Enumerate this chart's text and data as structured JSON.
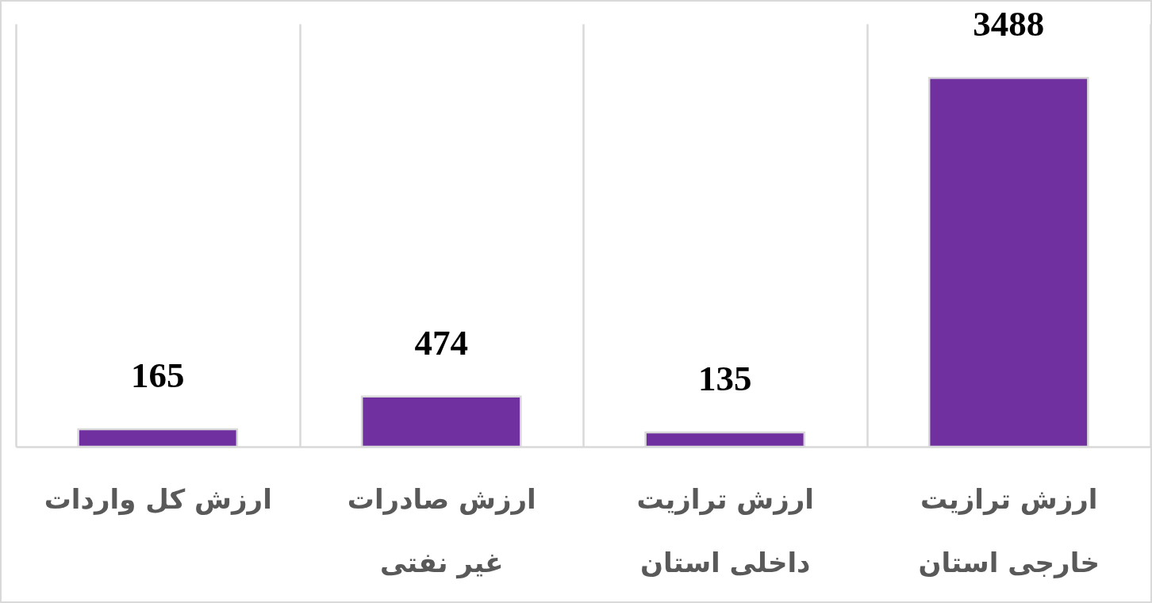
{
  "chart_data": {
    "type": "bar",
    "categories": [
      "ارزش کل واردات",
      "ارزش صادرات غیر نفتی",
      "ارزش ترازیت داخلی استان",
      "ارزش ترازیت خارجی استان"
    ],
    "values": [
      165,
      474,
      135,
      3488
    ],
    "color": "#7030a0",
    "data_labels": true,
    "grid": "x",
    "tick_labels": "x"
  }
}
